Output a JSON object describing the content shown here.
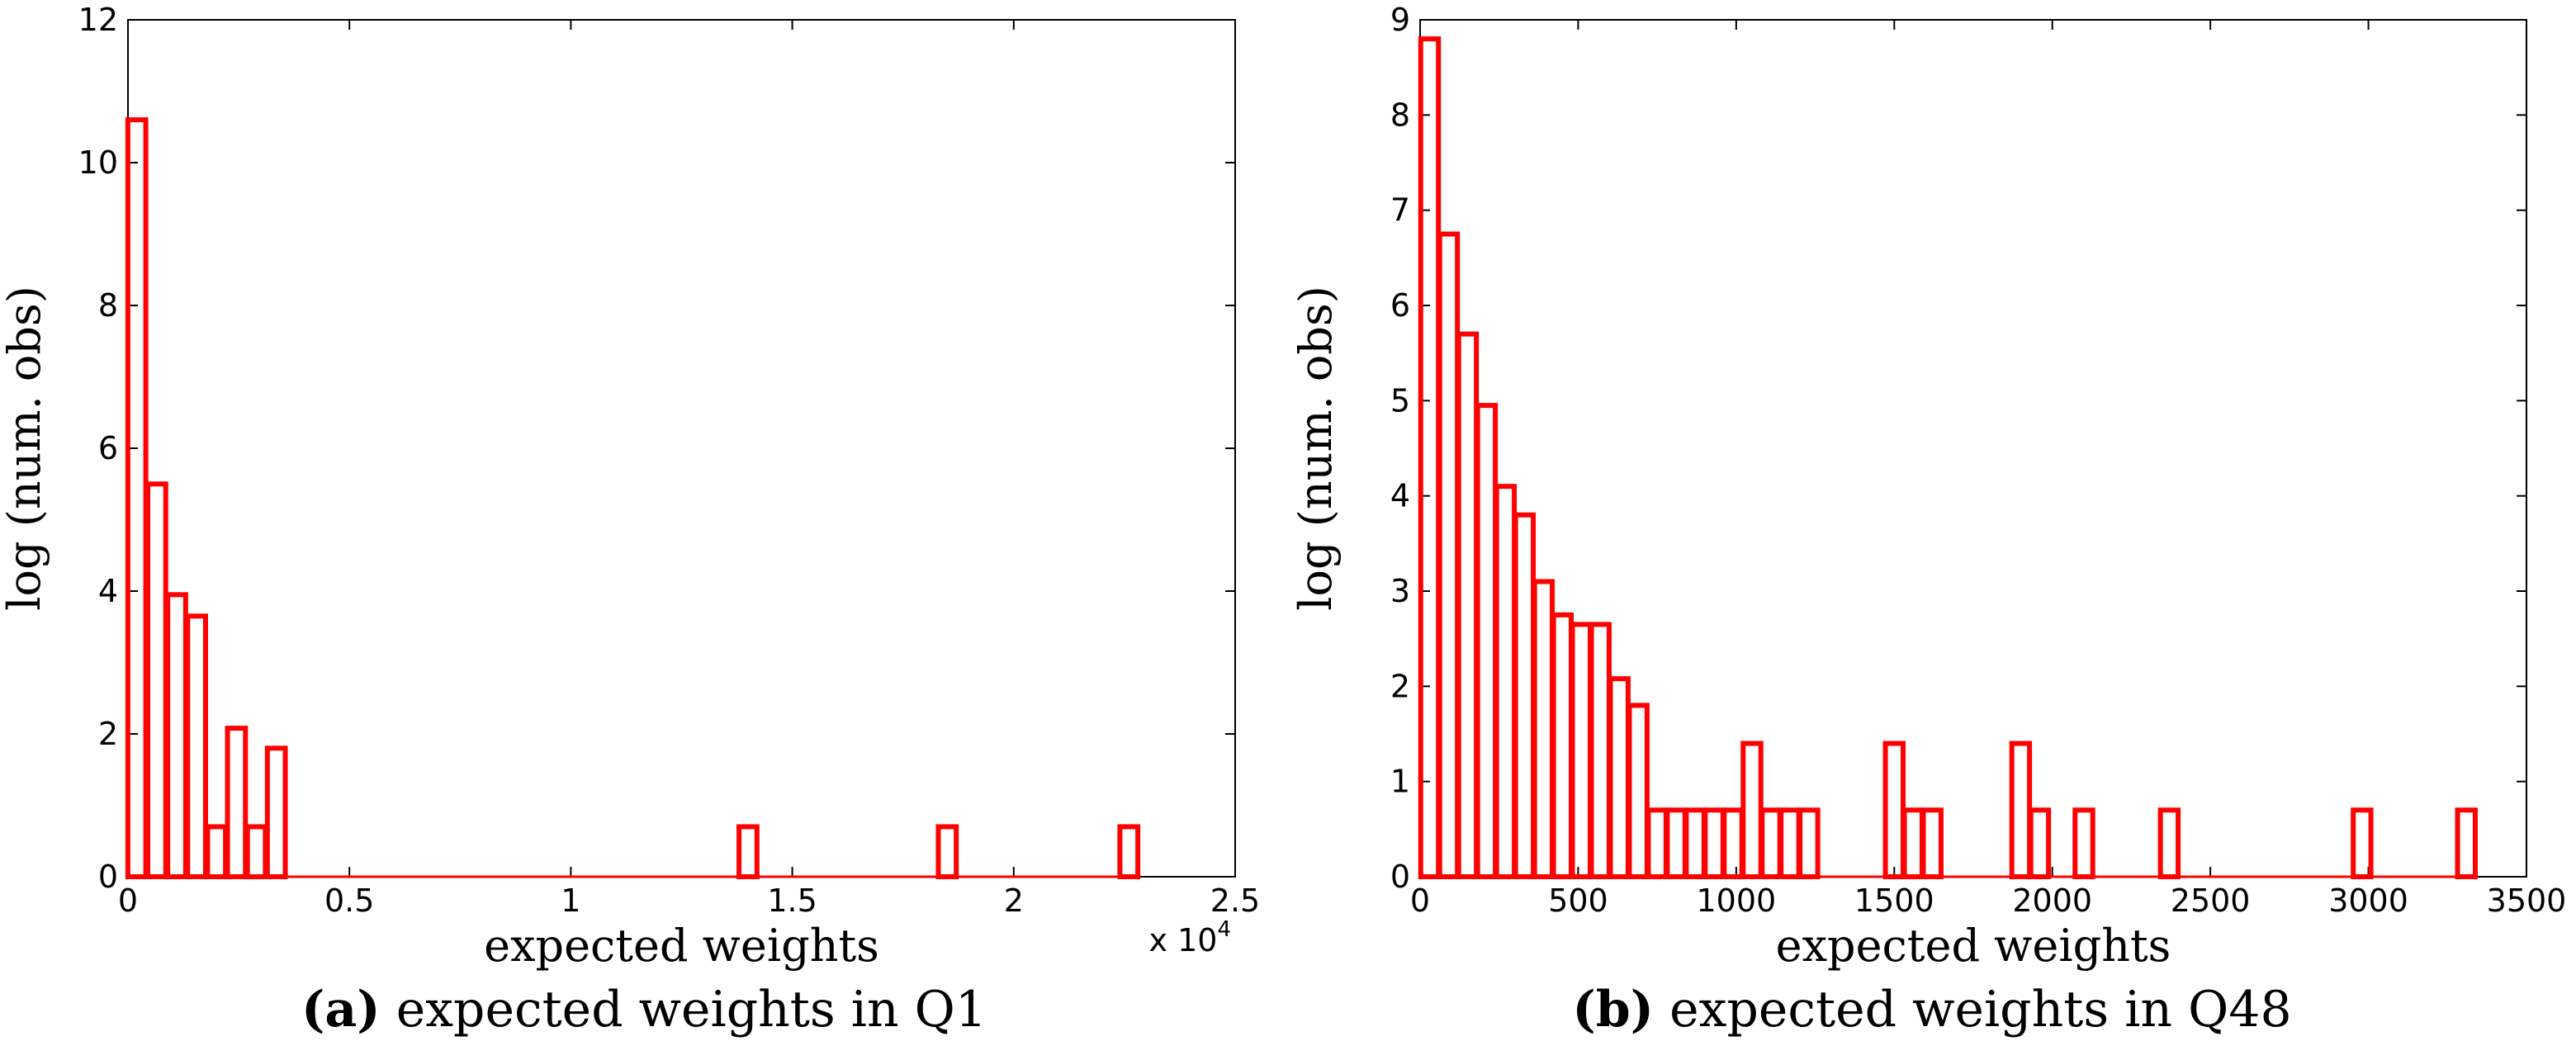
{
  "chart_data": [
    {
      "type": "bar",
      "subtype": "histogram",
      "panel_label": "(a)",
      "caption": "expected weights in Q1",
      "title": "",
      "xlabel": "expected weights",
      "ylabel": "log (num. obs)",
      "x_exponent_label": "x 10",
      "x_exponent_power": "4",
      "xlim": [
        0,
        2.5
      ],
      "ylim": [
        0,
        12
      ],
      "xticks": [
        0,
        0.5,
        1,
        1.5,
        2,
        2.5
      ],
      "xtick_labels": [
        "0",
        "0.5",
        "1",
        "1.5",
        "2",
        "2.5"
      ],
      "yticks": [
        0,
        2,
        4,
        6,
        8,
        10,
        12
      ],
      "ytick_labels": [
        "0",
        "2",
        "4",
        "6",
        "8",
        "10",
        "12"
      ],
      "bin_width": 0.0405,
      "bar_x": [
        0.02,
        0.065,
        0.11,
        0.155,
        0.2,
        0.245,
        0.29,
        0.335,
        1.4,
        1.85,
        2.26
      ],
      "values": [
        10.6,
        5.5,
        3.95,
        3.65,
        0.7,
        2.08,
        0.7,
        1.8,
        0.7,
        0.7,
        0.7
      ],
      "color": "#ff0000"
    },
    {
      "type": "bar",
      "subtype": "histogram",
      "panel_label": "(b)",
      "caption": "expected weights in Q48",
      "title": "",
      "xlabel": "expected weights",
      "ylabel": "log (num. obs)",
      "xlim": [
        0,
        3500
      ],
      "ylim": [
        0,
        9
      ],
      "xticks": [
        0,
        500,
        1000,
        1500,
        2000,
        2500,
        3000,
        3500
      ],
      "xtick_labels": [
        "0",
        "500",
        "1000",
        "1500",
        "2000",
        "2500",
        "3000",
        "3500"
      ],
      "yticks": [
        0,
        1,
        2,
        3,
        4,
        5,
        6,
        7,
        8,
        9
      ],
      "ytick_labels": [
        "0",
        "1",
        "2",
        "3",
        "4",
        "5",
        "6",
        "7",
        "8",
        "9"
      ],
      "bin_width": 56,
      "bar_x": [
        30,
        90,
        150,
        210,
        270,
        330,
        390,
        450,
        510,
        570,
        630,
        690,
        750,
        810,
        870,
        930,
        990,
        1050,
        1110,
        1170,
        1230,
        1500,
        1560,
        1620,
        1900,
        1960,
        2100,
        2370,
        2980,
        3310
      ],
      "values": [
        8.8,
        6.75,
        5.7,
        4.95,
        4.1,
        3.8,
        3.1,
        2.75,
        2.65,
        2.65,
        2.08,
        1.8,
        0.7,
        0.7,
        0.7,
        0.7,
        0.7,
        1.4,
        0.7,
        0.7,
        0.7,
        1.4,
        0.7,
        0.7,
        1.4,
        0.7,
        0.7,
        0.7,
        0.7,
        0.7
      ],
      "color": "#ff0000"
    }
  ]
}
